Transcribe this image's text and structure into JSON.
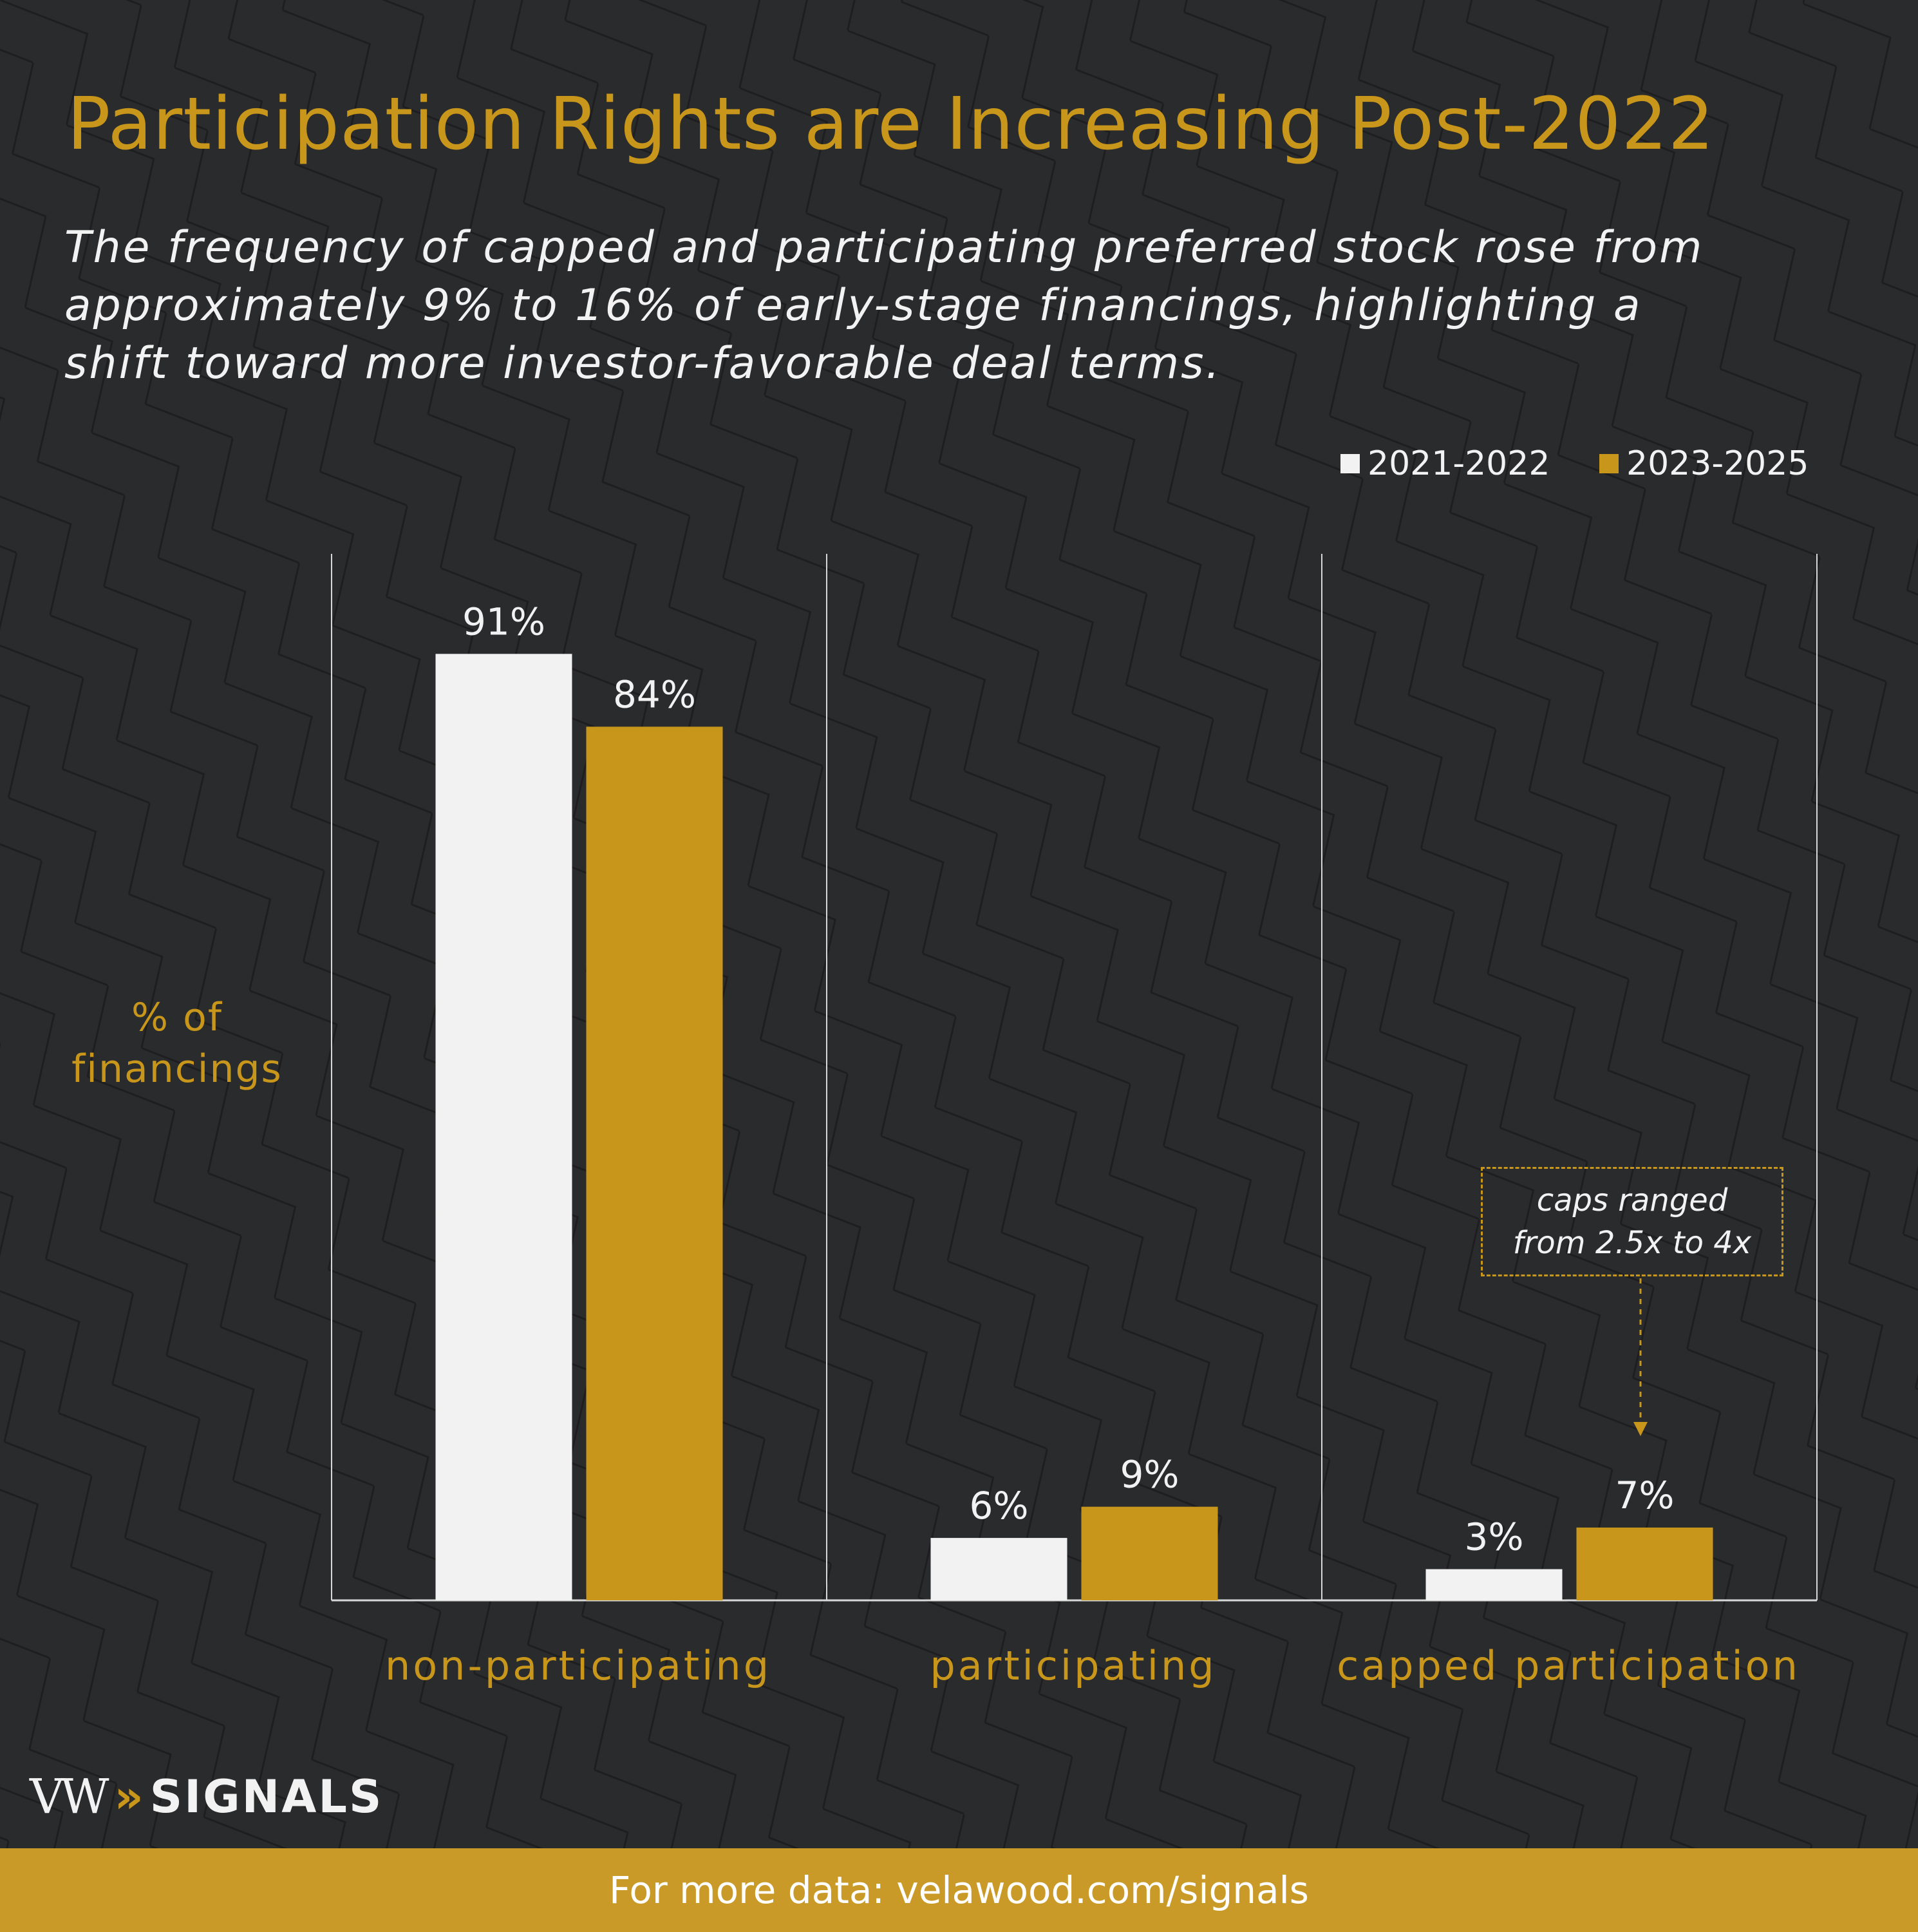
{
  "colors": {
    "background": "#2a2b2d",
    "accent": "#c8961a",
    "series_light": "#f2f2f2",
    "footer_bg": "#c99a28",
    "axis": "#d8d8d8"
  },
  "title": "Participation Rights are Increasing Post-2022",
  "subtitle_lines": [
    "The frequency of capped and participating preferred stock rose from",
    "approximately 9% to 16% of early-stage financings, highlighting a",
    "shift toward more investor-favorable deal terms."
  ],
  "legend": {
    "items": [
      {
        "label": "2021-2022",
        "color": "#f2f2f2"
      },
      {
        "label": "2023-2025",
        "color": "#c8961a"
      }
    ]
  },
  "y_label_lines": [
    "% of",
    "financings"
  ],
  "annotation": {
    "lines": [
      "caps ranged",
      "from 2.5x to 4x"
    ],
    "target_category": "capped participation",
    "target_series": "2023-2025"
  },
  "logo": {
    "vw": "VW",
    "chevrons": "»",
    "signals": "SIGNALS"
  },
  "footer": "For more data: velawood.com/signals",
  "chart_data": {
    "type": "bar",
    "title": "Participation Rights are Increasing Post-2022",
    "categories": [
      "non-participating",
      "participating",
      "capped participation"
    ],
    "series": [
      {
        "name": "2021-2022",
        "values": [
          91,
          6,
          3
        ],
        "labels": [
          "91%",
          "6%",
          "3%"
        ],
        "color": "#f2f2f2"
      },
      {
        "name": "2023-2025",
        "values": [
          84,
          9,
          7
        ],
        "labels": [
          "84%",
          "9%",
          "7%"
        ],
        "color": "#c8961a"
      }
    ],
    "ylabel": "% of financings",
    "xlabel": "",
    "ylim": [
      0,
      100
    ],
    "grid": false,
    "legend_position": "top-right"
  }
}
